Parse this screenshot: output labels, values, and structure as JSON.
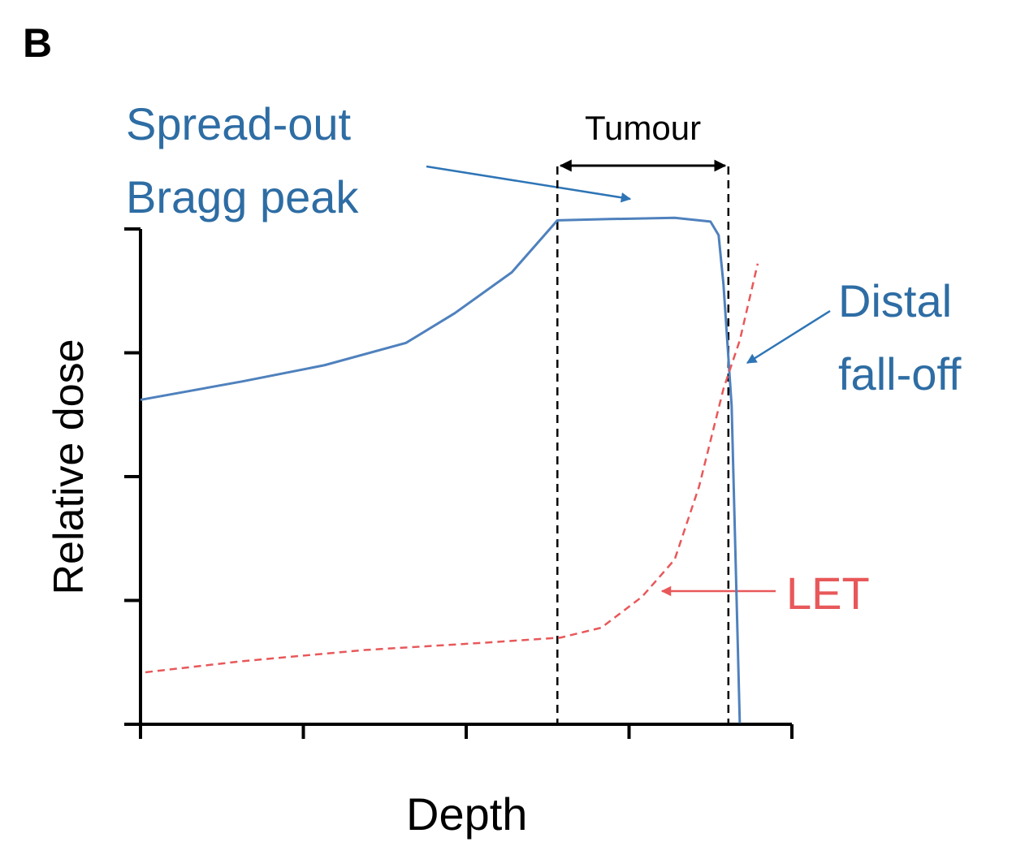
{
  "chart_data": {
    "type": "line",
    "panel_label": "B",
    "x_label": "Depth",
    "y_label": "Relative dose",
    "xlim": [
      0,
      4
    ],
    "ylim": [
      0,
      4
    ],
    "xticks": [
      0,
      1,
      2,
      3,
      4
    ],
    "yticks": [
      0,
      1,
      2,
      3,
      4
    ],
    "series": [
      {
        "color": "#4f81bd",
        "dashed": false,
        "x": [
          0,
          0.63,
          1.13,
          1.63,
          1.93,
          2.28,
          2.56,
          2.88,
          3.28,
          3.5,
          3.55,
          3.58,
          3.63,
          3.68
        ],
        "values": [
          2.62,
          2.77,
          2.9,
          3.08,
          3.32,
          3.65,
          4.07,
          4.08,
          4.09,
          4.06,
          3.95,
          3.55,
          2.57,
          0.01
        ]
      },
      {
        "color": "#e8585a",
        "dashed": true,
        "x": [
          0.03,
          0.63,
          1.38,
          2.13,
          2.58,
          2.83,
          3.08,
          3.28,
          3.43,
          3.58,
          3.68,
          3.79
        ],
        "values": [
          0.42,
          0.51,
          0.6,
          0.66,
          0.7,
          0.78,
          1.03,
          1.33,
          1.92,
          2.71,
          3.1,
          3.72
        ]
      }
    ],
    "tumour_bounds": [
      2.56,
      3.61
    ],
    "annotations": {
      "sobp": [
        "Spread-out",
        "Bragg peak"
      ],
      "tumour": "Tumour",
      "distal": [
        "Distal",
        "fall-off"
      ],
      "let": "LET"
    }
  }
}
